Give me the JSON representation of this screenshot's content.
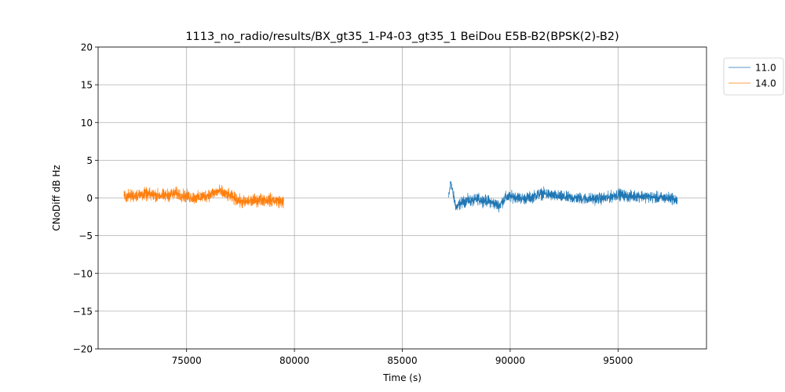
{
  "chart_data": {
    "type": "line",
    "title": "1113_no_radio/results/BX_gt35_1-P4-03_gt35_1 BeiDou E5B-B2(BPSK(2)-B2)",
    "xlabel": "Time (s)",
    "ylabel": "CNoDiff dB Hz",
    "xlim": [
      70900,
      99100
    ],
    "ylim": [
      -20,
      20
    ],
    "xticks": [
      75000,
      80000,
      85000,
      90000,
      95000
    ],
    "xtick_labels": [
      "75000",
      "80000",
      "85000",
      "90000",
      "95000"
    ],
    "yticks": [
      -20,
      -15,
      -10,
      -5,
      0,
      5,
      10,
      15,
      20
    ],
    "ytick_labels": [
      "−20",
      "−15",
      "−10",
      "−5",
      "0",
      "5",
      "10",
      "15",
      "20"
    ],
    "grid": true,
    "legend": "outside-top-right",
    "series": [
      {
        "name": "11.0",
        "color": "#1f77b4",
        "noise": 0.45,
        "x": [
          87150,
          87250,
          87350,
          87500,
          87700,
          88000,
          88300,
          88500,
          88700,
          89000,
          89200,
          89500,
          89800,
          90200,
          90600,
          91000,
          91300,
          91600,
          92000,
          92500,
          93000,
          93500,
          94000,
          94500,
          95000,
          95500,
          96000,
          96500,
          97000,
          97500,
          97750
        ],
        "y": [
          0.0,
          2.3,
          0.5,
          -1.3,
          -0.7,
          -0.3,
          -0.4,
          -0.1,
          -0.3,
          -0.4,
          -0.7,
          -1.0,
          0.1,
          0.2,
          -0.1,
          0.1,
          0.5,
          0.6,
          0.3,
          0.1,
          0.0,
          -0.1,
          -0.1,
          0.0,
          0.5,
          0.2,
          0.3,
          0.1,
          0.0,
          0.0,
          -0.4
        ]
      },
      {
        "name": "14.0",
        "color": "#ff7f0e",
        "noise": 0.5,
        "x": [
          72100,
          72500,
          73000,
          73500,
          74000,
          74500,
          75000,
          75500,
          76000,
          76500,
          76800,
          77200,
          77600,
          78000,
          78500,
          79000,
          79500
        ],
        "y": [
          0.2,
          0.3,
          0.5,
          0.4,
          0.3,
          0.6,
          0.2,
          0.0,
          0.4,
          0.9,
          0.5,
          0.0,
          -0.6,
          -0.4,
          -0.2,
          -0.3,
          -0.5
        ]
      }
    ]
  }
}
